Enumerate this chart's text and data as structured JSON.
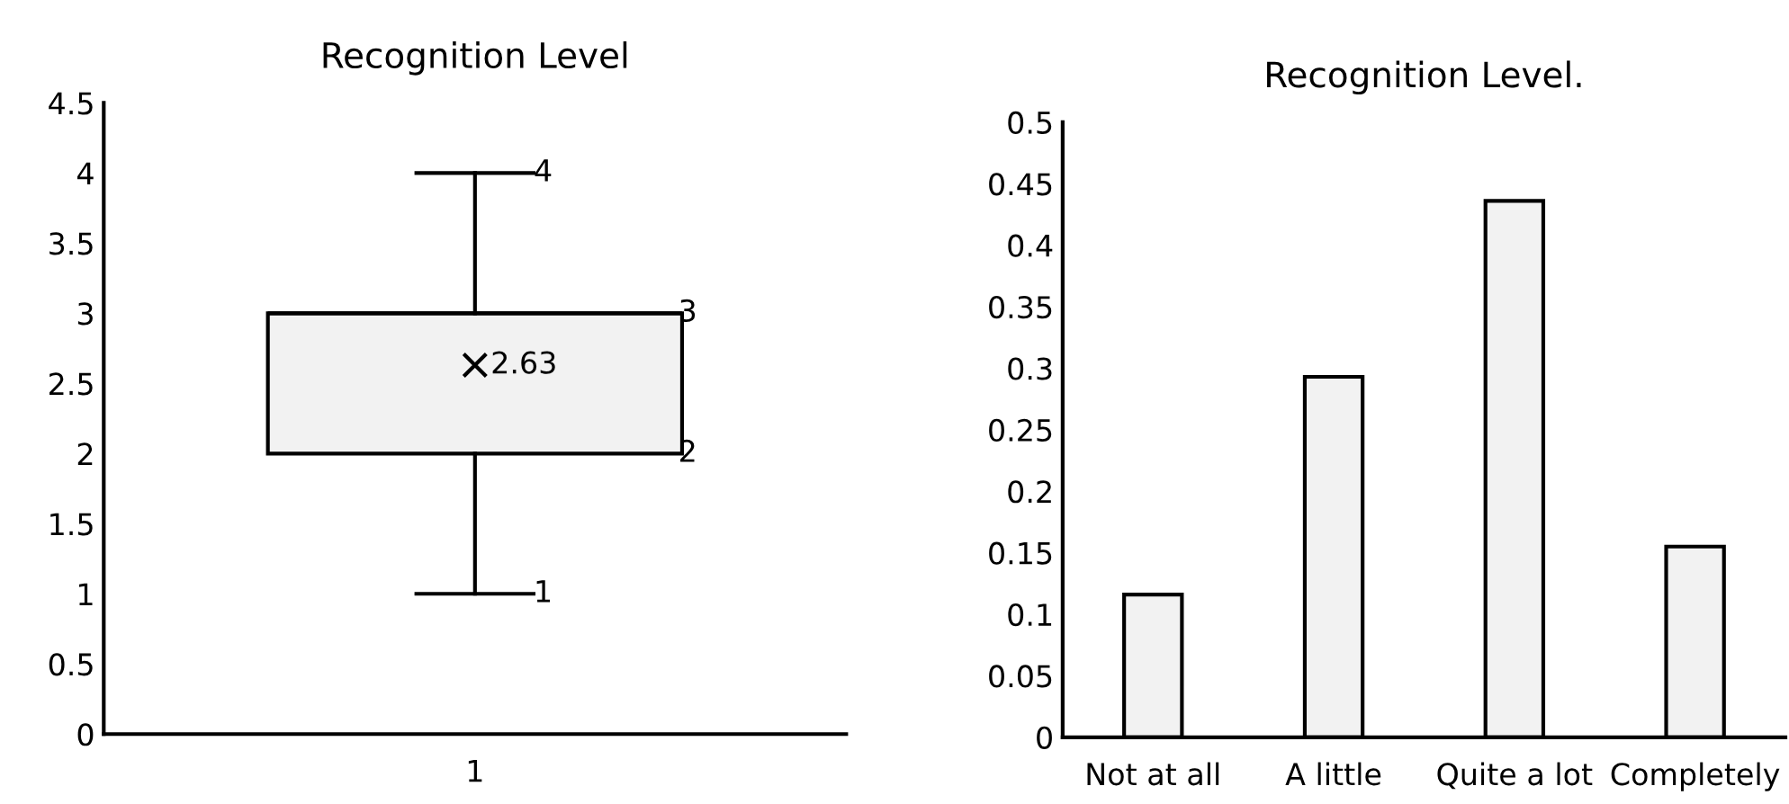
{
  "chart_data": [
    {
      "type": "box",
      "title": "Recognition Level",
      "categories": [
        "1"
      ],
      "color": "#f2f2f2",
      "boxes": [
        {
          "low": 1,
          "q1": 2,
          "median": 3,
          "q3": 3,
          "high": 4,
          "mean": 2.63
        }
      ],
      "ylim": [
        0,
        4.5
      ],
      "yticks": [
        0,
        0.5,
        1,
        1.5,
        2,
        2.5,
        3,
        3.5,
        4,
        4.5
      ],
      "grid": false,
      "annotations": [
        {
          "text": "4",
          "x": "1",
          "y": 4
        },
        "3",
        "2",
        {
          "text": "1",
          "x": "1",
          "y": 1
        },
        "2.63"
      ]
    },
    {
      "type": "bar",
      "title": "Recognition Level.",
      "categories": [
        "Not at all",
        "A little",
        "Quite a lot",
        "Completely"
      ],
      "values": [
        0.116,
        0.293,
        0.436,
        0.155
      ],
      "color": "#f2f2f2",
      "ylim": [
        0,
        0.5
      ],
      "yticks": [
        0,
        0.05,
        0.1,
        0.15,
        0.2,
        0.25,
        0.3,
        0.35,
        0.4,
        0.45,
        0.5
      ],
      "grid": false
    }
  ]
}
